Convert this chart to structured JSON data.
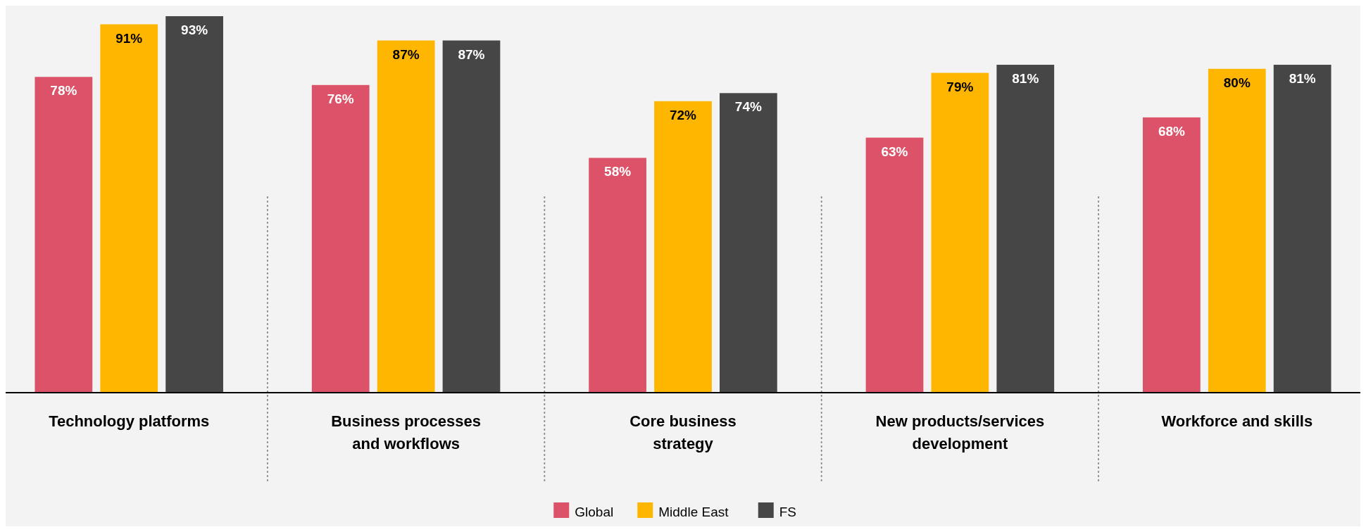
{
  "chart_data": {
    "type": "bar",
    "categories": [
      "Technology platforms",
      "Business processes and workflows",
      "Core business strategy",
      "New products/services development",
      "Workforce and skills"
    ],
    "series": [
      {
        "name": "Global",
        "color": "#dc5369",
        "values": [
          78,
          76,
          58,
          63,
          68
        ],
        "value_labels": [
          "78%",
          "76%",
          "58%",
          "63%",
          "68%"
        ]
      },
      {
        "name": "Middle East",
        "color": "#ffb600",
        "values": [
          91,
          87,
          72,
          79,
          80
        ],
        "value_labels": [
          "91%",
          "87%",
          "72%",
          "79%",
          "80%"
        ]
      },
      {
        "name": "FS",
        "color": "#464646",
        "values": [
          93,
          87,
          74,
          81,
          81
        ],
        "value_labels": [
          "93%",
          "87%",
          "74%",
          "81%",
          "81%"
        ]
      }
    ],
    "legend": "bottom"
  }
}
